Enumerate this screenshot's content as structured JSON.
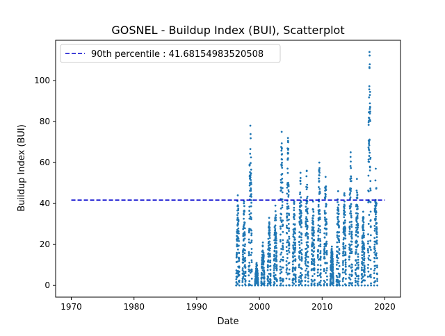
{
  "chart_data": {
    "type": "scatter",
    "title": "GOSNEL - Buildup Index (BUI), Scatterplot",
    "xlabel": "Date",
    "ylabel": "Buildup Index (BUI)",
    "xlim": [
      1967.5,
      2022.5
    ],
    "ylim": [
      -5.7,
      119.7
    ],
    "xticks": [
      1970,
      1980,
      1990,
      2000,
      2010,
      2020
    ],
    "yticks": [
      0,
      20,
      40,
      60,
      80,
      100
    ],
    "grid": false,
    "legend_position": "top-left",
    "reference_line": {
      "label": "90th percentile : 41.68154983520508",
      "y": 41.68154983520508,
      "x_start": 1970,
      "x_end": 2020,
      "color": "#0000cc",
      "style": "dashed"
    },
    "series": [
      {
        "color": "#1f77b4",
        "seasons": [
          {
            "x_start": 1996.3,
            "x_end": 1996.8,
            "peak": 44
          },
          {
            "x_start": 1997.3,
            "x_end": 1997.8,
            "peak": 41
          },
          {
            "x_start": 1998.3,
            "x_end": 1998.8,
            "peak": 78
          },
          {
            "x_start": 1999.3,
            "x_end": 1999.8,
            "peak": 11
          },
          {
            "x_start": 2000.3,
            "x_end": 2000.8,
            "peak": 21
          },
          {
            "x_start": 2001.3,
            "x_end": 2001.8,
            "peak": 33
          },
          {
            "x_start": 2002.3,
            "x_end": 2002.8,
            "peak": 39
          },
          {
            "x_start": 2003.3,
            "x_end": 2003.8,
            "peak": 75
          },
          {
            "x_start": 2004.3,
            "x_end": 2004.8,
            "peak": 72
          },
          {
            "x_start": 2005.3,
            "x_end": 2005.8,
            "peak": 41
          },
          {
            "x_start": 2006.3,
            "x_end": 2006.8,
            "peak": 55
          },
          {
            "x_start": 2007.3,
            "x_end": 2007.8,
            "peak": 56
          },
          {
            "x_start": 2008.3,
            "x_end": 2008.8,
            "peak": 41
          },
          {
            "x_start": 2009.3,
            "x_end": 2009.8,
            "peak": 60
          },
          {
            "x_start": 2010.3,
            "x_end": 2010.8,
            "peak": 53
          },
          {
            "x_start": 2011.3,
            "x_end": 2011.8,
            "peak": 19
          },
          {
            "x_start": 2012.3,
            "x_end": 2012.8,
            "peak": 46
          },
          {
            "x_start": 2013.3,
            "x_end": 2013.8,
            "peak": 45
          },
          {
            "x_start": 2014.3,
            "x_end": 2014.8,
            "peak": 65
          },
          {
            "x_start": 2015.3,
            "x_end": 2015.8,
            "peak": 52
          },
          {
            "x_start": 2016.3,
            "x_end": 2016.8,
            "peak": 36
          },
          {
            "x_start": 2017.3,
            "x_end": 2017.8,
            "peak": 114
          },
          {
            "x_start": 2018.3,
            "x_end": 2018.8,
            "peak": 57
          }
        ]
      }
    ]
  }
}
